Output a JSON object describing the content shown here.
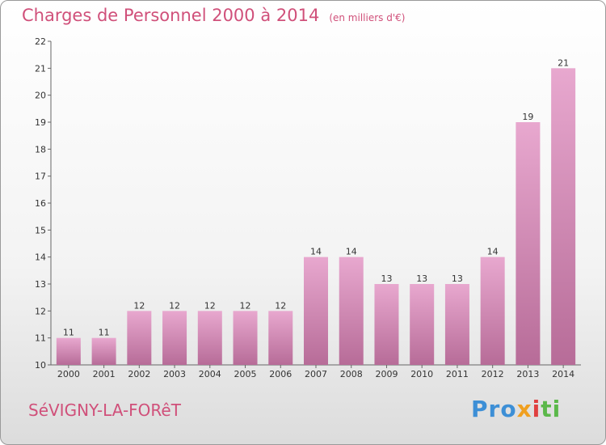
{
  "header": {
    "title": "Charges de Personnel 2000 à 2014",
    "subtitle": "(en milliers d'€)"
  },
  "footer": {
    "commune": "SéVIGNY-LA-FORêT",
    "logo": [
      "Pro",
      "x",
      "i",
      "ti"
    ]
  },
  "colors": {
    "bar_light": "#e8a8cf",
    "bar_dark": "#b76c98",
    "title": "#d0507a"
  },
  "chart_data": {
    "type": "bar",
    "title": "Charges de Personnel 2000 à 2014",
    "subtitle": "(en milliers d'€)",
    "categories": [
      "2000",
      "2001",
      "2002",
      "2003",
      "2004",
      "2005",
      "2006",
      "2007",
      "2008",
      "2009",
      "2010",
      "2011",
      "2012",
      "2013",
      "2014"
    ],
    "values": [
      11,
      11,
      12,
      12,
      12,
      12,
      12,
      14,
      14,
      13,
      13,
      13,
      14,
      19,
      21
    ],
    "ylim": [
      10,
      22
    ],
    "yticks": [
      10,
      11,
      12,
      13,
      14,
      15,
      16,
      17,
      18,
      19,
      20,
      21,
      22
    ],
    "grid": false,
    "legend": "none"
  }
}
